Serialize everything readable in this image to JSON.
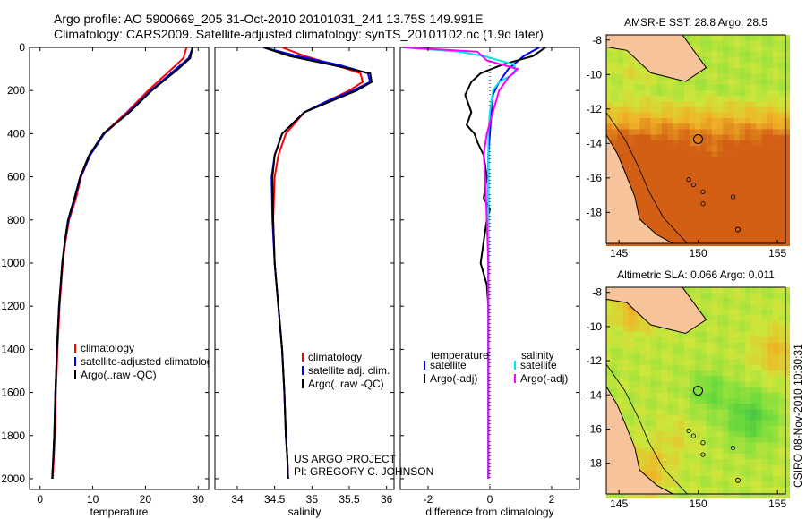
{
  "header": {
    "line1": "Argo profile: AO 5900669_205 31-Oct-2010 20101031_241 13.75S 149.991E",
    "line2": "Climatology: CARS2009. Satellite-adjusted climatology: synTS_20101102.nc (1.9d later)"
  },
  "credit": {
    "line1": "US ARGO PROJECT",
    "line2": "PI: GREGORY C. JOHNSON"
  },
  "side_stamp": "CSIRO 08-Nov-2010 10:30:31",
  "colors": {
    "red": "#ff0000",
    "blue": "#0000ff",
    "black": "#000000",
    "cyan": "#00e5ee",
    "magenta": "#ff00ff",
    "land": "#f6c39a"
  },
  "chart_data": [
    {
      "type": "line",
      "id": "temperature",
      "xlabel": "temperature",
      "ylabel": "",
      "xlim": [
        -2,
        32
      ],
      "ylim": [
        2050,
        0
      ],
      "xticks": [
        0,
        10,
        20,
        30
      ],
      "yticks": [
        0,
        200,
        400,
        600,
        800,
        1000,
        1200,
        1400,
        1600,
        1800,
        2000
      ],
      "legend": [
        "climatology",
        "satellite-adjusted climatology",
        "Argo(..raw -QC)"
      ],
      "series": [
        {
          "name": "climatology",
          "color": "red",
          "x": [
            27.8,
            27.2,
            25.0,
            20.5,
            16.5,
            12.0,
            9.5,
            7.8,
            6.8,
            5.5,
            4.8,
            4.3,
            3.7,
            3.3,
            3.0,
            2.8,
            2.6,
            2.4
          ],
          "y": [
            0,
            50,
            100,
            200,
            300,
            400,
            500,
            600,
            700,
            800,
            900,
            1000,
            1200,
            1400,
            1600,
            1800,
            1900,
            2000
          ]
        },
        {
          "name": "satellite-adjusted climatology",
          "color": "blue",
          "x": [
            29.0,
            28.2,
            25.8,
            21.0,
            16.8,
            12.2,
            9.5,
            7.7,
            6.6,
            5.4,
            4.7,
            4.2,
            3.6,
            3.2,
            2.9,
            2.7,
            2.5,
            2.3
          ],
          "y": [
            0,
            50,
            100,
            200,
            300,
            400,
            500,
            600,
            700,
            800,
            900,
            1000,
            1200,
            1400,
            1600,
            1800,
            1900,
            2000
          ]
        },
        {
          "name": "Argo(..raw -QC)",
          "color": "black",
          "x": [
            28.9,
            28.5,
            26.2,
            21.2,
            17.0,
            12.0,
            9.3,
            7.6,
            6.5,
            5.3,
            4.7,
            4.2,
            3.6,
            3.2,
            2.9,
            2.7,
            2.5,
            2.3
          ],
          "y": [
            0,
            50,
            100,
            200,
            300,
            400,
            500,
            600,
            700,
            800,
            900,
            1000,
            1200,
            1400,
            1600,
            1800,
            1900,
            2000
          ]
        }
      ]
    },
    {
      "type": "line",
      "id": "salinity",
      "xlabel": "salinity",
      "ylabel": "",
      "xlim": [
        33.7,
        36.1
      ],
      "ylim": [
        2050,
        0
      ],
      "xticks": [
        34,
        34.5,
        35,
        35.5,
        36
      ],
      "legend": [
        "climatology",
        "satellite adj. clim.",
        "Argo(..raw -QC)"
      ],
      "series": [
        {
          "name": "climatology",
          "color": "red",
          "x": [
            34.6,
            34.9,
            35.3,
            35.65,
            35.68,
            35.5,
            35.2,
            34.9,
            34.65,
            34.55,
            34.5,
            34.48,
            34.5,
            34.55,
            34.6,
            34.63,
            34.65,
            34.67,
            34.68
          ],
          "y": [
            0,
            40,
            80,
            120,
            160,
            200,
            250,
            300,
            400,
            500,
            600,
            800,
            1000,
            1200,
            1400,
            1600,
            1800,
            1900,
            2000
          ]
        },
        {
          "name": "satellite adj. clim.",
          "color": "blue",
          "x": [
            34.35,
            34.8,
            35.35,
            35.75,
            35.78,
            35.55,
            35.2,
            34.9,
            34.6,
            34.5,
            34.46,
            34.47,
            34.5,
            34.55,
            34.6,
            34.63,
            34.65,
            34.67,
            34.68
          ],
          "y": [
            0,
            40,
            80,
            120,
            160,
            200,
            250,
            300,
            400,
            500,
            600,
            800,
            1000,
            1200,
            1400,
            1600,
            1800,
            1900,
            2000
          ]
        },
        {
          "name": "Argo(..raw -QC)",
          "color": "black",
          "x": [
            34.35,
            34.7,
            35.25,
            35.78,
            35.8,
            35.6,
            35.25,
            34.9,
            34.6,
            34.5,
            34.47,
            34.48,
            34.5,
            34.55,
            34.6,
            34.63,
            34.65,
            34.67,
            34.68
          ],
          "y": [
            0,
            40,
            80,
            120,
            160,
            200,
            250,
            300,
            400,
            500,
            600,
            800,
            1000,
            1200,
            1400,
            1600,
            1800,
            1900,
            2000
          ]
        }
      ]
    },
    {
      "type": "line",
      "id": "difference",
      "xlabel": "difference from climatology",
      "ylabel": "",
      "xlim": [
        -2.9,
        2.9
      ],
      "ylim": [
        2050,
        0
      ],
      "xticks": [
        -2,
        0,
        2
      ],
      "legend": [
        "temperature",
        "satellite",
        "Argo(-adj)",
        "salinity",
        "satellite",
        "Argo(-adj)"
      ],
      "series": [
        {
          "name": "temperature satellite",
          "color": "blue",
          "x": [
            1.6,
            1.1,
            0.6,
            0.3,
            0.1,
            0.05,
            0.0,
            -0.05,
            -0.05,
            -0.05,
            -0.05,
            -0.05,
            -0.05,
            -0.05,
            -0.05
          ],
          "y": [
            0,
            40,
            100,
            160,
            220,
            300,
            400,
            500,
            600,
            700,
            800,
            1000,
            1200,
            1600,
            2000
          ]
        },
        {
          "name": "temperature Argo(-adj)",
          "color": "black",
          "x": [
            1.8,
            1.4,
            0.4,
            -0.3,
            -0.6,
            -0.8,
            -0.6,
            -0.75,
            -0.5,
            -0.4,
            -0.2,
            -0.1,
            -0.2,
            0.0,
            -0.1,
            -0.2,
            -0.3,
            -0.1,
            -0.05,
            -0.05
          ],
          "y": [
            0,
            40,
            80,
            120,
            160,
            220,
            300,
            360,
            400,
            440,
            500,
            600,
            700,
            750,
            800,
            900,
            1000,
            1100,
            1200,
            2000
          ]
        },
        {
          "name": "salinity satellite",
          "color": "cyan",
          "x": [
            -2.8,
            -1.0,
            -0.2,
            0.8,
            0.8,
            0.3,
            0.1,
            0.0,
            -0.05,
            -0.05,
            -0.05,
            -0.05,
            -0.05
          ],
          "y": [
            0,
            20,
            40,
            80,
            120,
            160,
            200,
            300,
            400,
            600,
            1000,
            1500,
            2000
          ]
        },
        {
          "name": "salinity Argo(-adj)",
          "color": "magenta",
          "x": [
            -2.8,
            -0.4,
            -0.1,
            0.9,
            0.6,
            0.3,
            0.1,
            -0.1,
            -0.2,
            -0.15,
            -0.1,
            -0.05,
            -0.05,
            -0.05
          ],
          "y": [
            0,
            20,
            60,
            100,
            140,
            200,
            300,
            400,
            500,
            600,
            800,
            1000,
            1500,
            2000
          ]
        }
      ]
    },
    {
      "type": "heatmap",
      "id": "sst_map",
      "title": "AMSR-E SST: 28.8 Argo: 28.5",
      "xlim": [
        144.2,
        155.5
      ],
      "ylim": [
        -19.8,
        -7.7
      ],
      "xticks": [
        145,
        150,
        155
      ],
      "yticks": [
        -8,
        -10,
        -12,
        -14,
        -16,
        -18
      ],
      "argo_position": [
        149.991,
        -13.75
      ]
    },
    {
      "type": "heatmap",
      "id": "sla_map",
      "title": "Altimetric SLA: 0.066 Argo: 0.011",
      "xlim": [
        144.2,
        155.5
      ],
      "ylim": [
        -19.8,
        -7.7
      ],
      "xticks": [
        145,
        150,
        155
      ],
      "yticks": [
        -8,
        -10,
        -12,
        -14,
        -16,
        -18
      ],
      "argo_position": [
        149.991,
        -13.75
      ]
    }
  ]
}
